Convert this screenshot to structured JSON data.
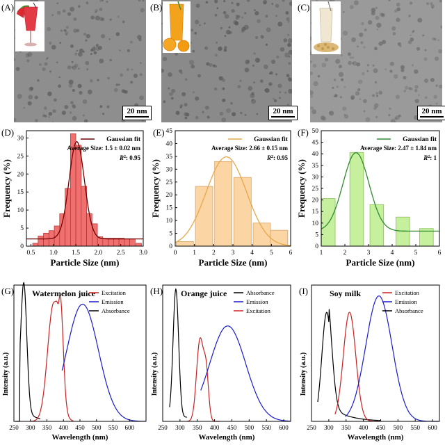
{
  "labels": {
    "A": "(A)",
    "B": "(B)",
    "C": "(C)",
    "D": "(D)",
    "E": "(E)",
    "F": "(F)",
    "G": "(G)",
    "H": "(H)",
    "I": "(I)"
  },
  "tem": {
    "scale": "20 nm",
    "colors": {
      "watermelon": "#e23b45",
      "orange": "#f3a21c",
      "soy": "#efe7d2"
    }
  },
  "hist_common": {
    "ylabel": "Frequency (%)",
    "xlabel": "Particle Size (nm)",
    "fit": "Gaussian fit"
  },
  "hist": [
    {
      "id": "D",
      "color": "#f07070",
      "edge": "#b03030",
      "line": "#700000",
      "avg": "Average Size: 1.5 ± 0.02 nm",
      "r2": ": 0.95",
      "xlim": [
        0.4,
        3.0
      ],
      "xticks": [
        0.5,
        1.0,
        1.5,
        2.0,
        2.5,
        3.0
      ],
      "xtick_labels": [
        "0.5",
        "1.0",
        "1.5",
        "2.0",
        "2.5",
        "3.0"
      ],
      "ylim": [
        0,
        32
      ],
      "yticks": [
        0,
        5,
        10,
        15,
        20,
        25,
        30
      ],
      "ytick_labels": [
        "0",
        "5",
        "10",
        "15",
        "20",
        "25",
        "30"
      ],
      "binw": 0.12,
      "bins": [
        [
          0.6,
          0.8
        ],
        [
          0.72,
          2.8
        ],
        [
          0.84,
          3.6
        ],
        [
          0.96,
          4.3
        ],
        [
          1.08,
          5.6
        ],
        [
          1.2,
          9.0
        ],
        [
          1.32,
          16.0
        ],
        [
          1.44,
          31.2
        ],
        [
          1.56,
          28.0
        ],
        [
          1.68,
          16.6
        ],
        [
          1.8,
          9.0
        ],
        [
          1.92,
          6.2
        ],
        [
          2.04,
          2.6
        ],
        [
          2.16,
          2.2
        ],
        [
          2.28,
          2.2
        ],
        [
          2.4,
          2.2
        ],
        [
          2.52,
          2.2
        ],
        [
          2.64,
          2.0
        ],
        [
          2.76,
          2.0
        ],
        [
          2.9,
          0.8
        ]
      ],
      "fit_params": {
        "base": 2.0,
        "amp": 27.0,
        "mu": 1.52,
        "sigma": 0.17
      }
    },
    {
      "id": "E",
      "color": "#fbd6a4",
      "edge": "#d39a58",
      "line": "#e7a74a",
      "avg": "Average Size: 2.66 ± 0.15 nm",
      "r2": ": 0.95",
      "xlim": [
        0,
        6
      ],
      "xticks": [
        0,
        1,
        2,
        3,
        4,
        5,
        6
      ],
      "xtick_labels": [
        "0",
        "1",
        "2",
        "3",
        "4",
        "5",
        "6"
      ],
      "ylim": [
        0,
        45
      ],
      "yticks": [
        0,
        5,
        10,
        15,
        20,
        25,
        30,
        35,
        40,
        45
      ],
      "ytick_labels": [
        "0",
        "5",
        "10",
        "15",
        "20",
        "25",
        "30",
        "35",
        "40",
        "45"
      ],
      "binw": 0.9,
      "bins": [
        [
          0.5,
          1.8
        ],
        [
          1.5,
          23.3
        ],
        [
          2.5,
          33.0
        ],
        [
          3.5,
          26.8
        ],
        [
          4.5,
          9.0
        ],
        [
          5.4,
          6.2
        ]
      ],
      "fit_params": {
        "base": 0.0,
        "amp": 34.8,
        "mu": 2.66,
        "sigma": 1.05
      }
    },
    {
      "id": "F",
      "color": "#c6ef9e",
      "edge": "#7fb94a",
      "line": "#2e8b2e",
      "avg": "Average Size: 2.47 ± 1.84 nm",
      "r2": ": 1",
      "xlim": [
        1,
        6
      ],
      "xticks": [
        1,
        2,
        3,
        4,
        5,
        6
      ],
      "xtick_labels": [
        "1",
        "2",
        "3",
        "4",
        "5",
        "6"
      ],
      "ylim": [
        0,
        50
      ],
      "yticks": [
        0,
        5,
        10,
        15,
        20,
        25,
        30,
        35,
        40,
        45,
        50
      ],
      "ytick_labels": [
        "0",
        "5",
        "10",
        "15",
        "20",
        "25",
        "30",
        "35",
        "40",
        "45",
        "50"
      ],
      "binw": 0.58,
      "bins": [
        [
          1.3,
          20.6
        ],
        [
          2.5,
          40.6
        ],
        [
          3.35,
          18.0
        ],
        [
          4.45,
          12.6
        ],
        [
          5.45,
          7.6
        ]
      ],
      "fit_params": {
        "base": 6.5,
        "amp": 34.0,
        "mu": 2.47,
        "sigma": 0.55
      }
    }
  ],
  "spectra_common": {
    "ylabel": "Intensity (a.u.)",
    "xlabel": "Wavelength (nm)"
  },
  "spectra": [
    {
      "id": "G",
      "title": "Watermelon juice",
      "xlim": [
        250,
        650
      ],
      "xticks": [
        250,
        300,
        350,
        400,
        450,
        500,
        550,
        600
      ],
      "xtick_labels": [
        "250",
        "300",
        "350",
        "400",
        "450",
        "500",
        "550",
        "600"
      ],
      "legend": [
        {
          "name": "Excitation",
          "color": "#cc2020"
        },
        {
          "name": "Emission",
          "color": "#1a1acc"
        },
        {
          "name": "Absorbance",
          "color": "#000000"
        }
      ]
    },
    {
      "id": "H",
      "title": "Orange juice",
      "xlim": [
        250,
        620
      ],
      "xticks": [
        250,
        300,
        350,
        400,
        450,
        500,
        550,
        600
      ],
      "xtick_labels": [
        "250",
        "300",
        "350",
        "400",
        "450",
        "500",
        "550",
        "600"
      ],
      "legend": [
        {
          "name": "Absorbance",
          "color": "#000000"
        },
        {
          "name": "Emission",
          "color": "#1a1acc"
        },
        {
          "name": "Excitation",
          "color": "#cc2020"
        }
      ]
    },
    {
      "id": "I",
      "title": "Soy milk",
      "xlim": [
        250,
        620
      ],
      "xticks": [
        250,
        300,
        350,
        400,
        450,
        500,
        550,
        600
      ],
      "xtick_labels": [
        "250",
        "300",
        "350",
        "400",
        "450",
        "500",
        "550",
        "600"
      ],
      "legend": [
        {
          "name": "Excitation",
          "color": "#cc2020"
        },
        {
          "name": "Emission",
          "color": "#1a1acc"
        },
        {
          "name": "Absorbance",
          "color": "#000000"
        }
      ]
    }
  ]
}
